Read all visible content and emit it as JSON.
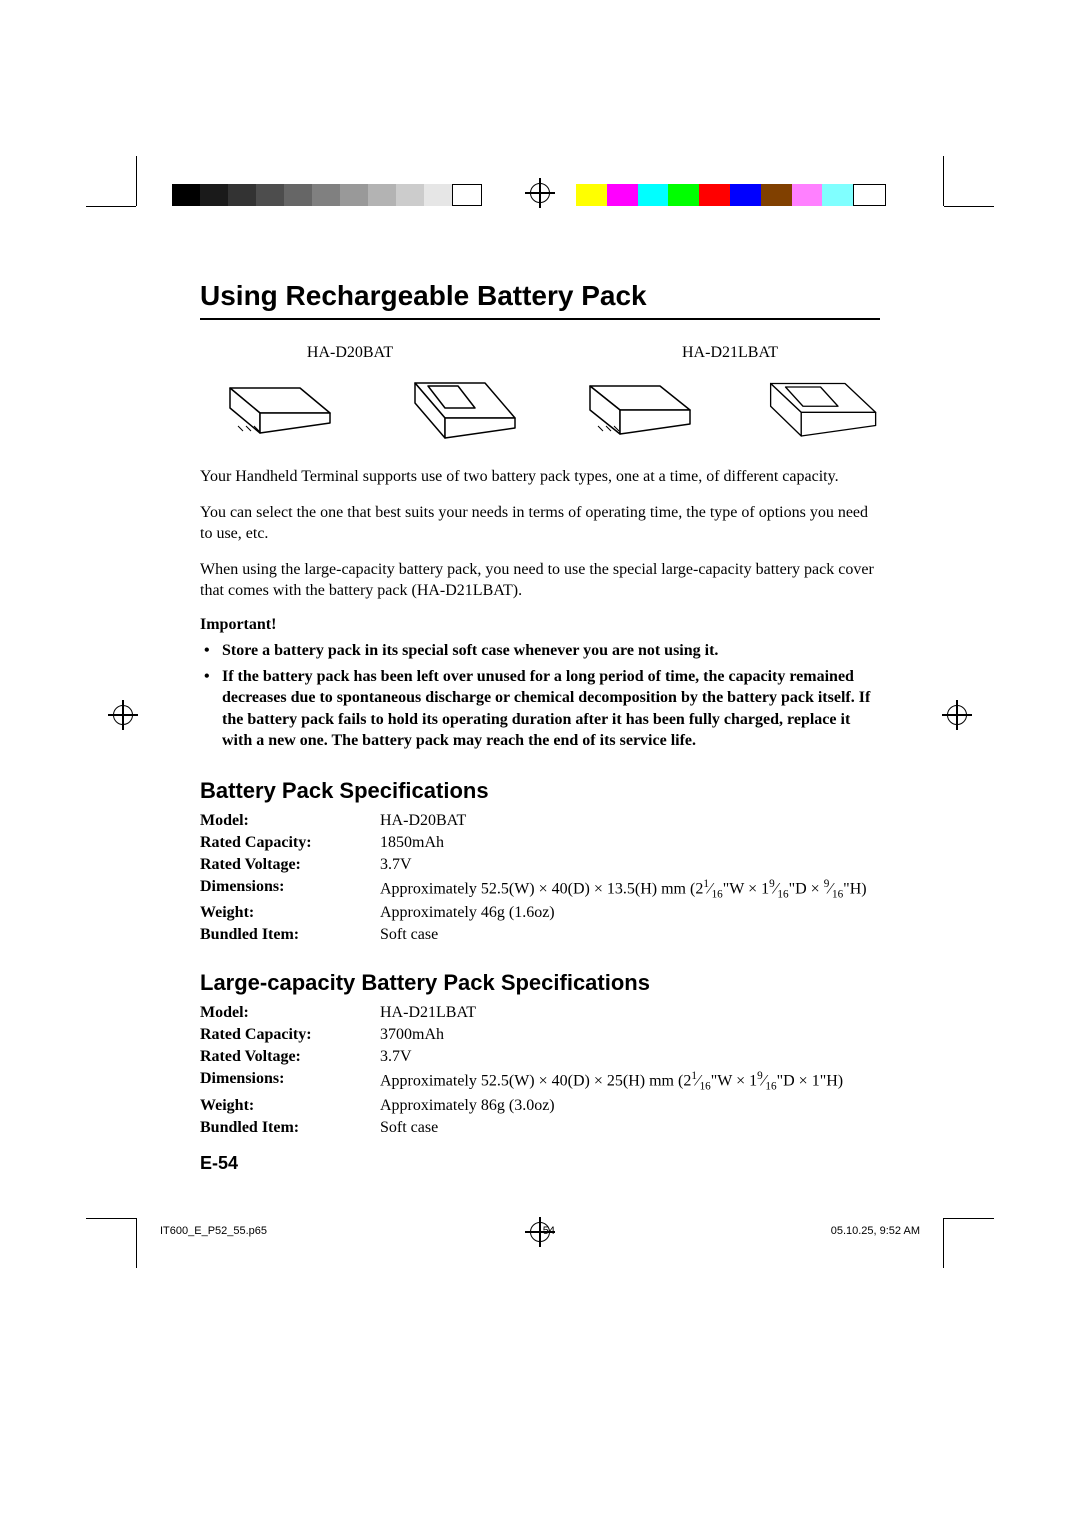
{
  "printMarks": {
    "grayBar": [
      "#000000",
      "#1a1a1a",
      "#333333",
      "#4d4d4d",
      "#666666",
      "#808080",
      "#999999",
      "#b3b3b3",
      "#cccccc",
      "#e6e6e6",
      "#ffffff"
    ],
    "colorBar": [
      "#ffff00",
      "#ff00ff",
      "#00ffff",
      "#00ff00",
      "#ff0000",
      "#0000ff",
      "#804000",
      "#ff80ff",
      "#80ffff",
      "#ffffff"
    ]
  },
  "title": "Using Rechargeable Battery Pack",
  "modelLabels": {
    "left": "HA-D20BAT",
    "right": "HA-D21LBAT"
  },
  "bodyParagraphs": [
    "Your Handheld Terminal supports use of two battery pack types, one at a time, of different capacity.",
    "You can select the one that best suits your needs in terms of operating time, the type of options you need to use, etc.",
    "When using the large-capacity battery pack, you need to use the special large-capacity battery pack cover that comes with the battery pack (HA-D21LBAT)."
  ],
  "importantLabel": "Important!",
  "bullets": [
    "Store a battery pack in its special soft case whenever you are not using it.",
    "If the battery pack has been left over unused for a long period of time, the capacity remained decreases due to spontaneous discharge or chemical decomposition by the battery pack itself. If the battery pack fails to hold its operating duration after it has been fully charged, replace it with a new one. The battery pack may reach the end of its service life."
  ],
  "spec1": {
    "heading": "Battery Pack Specifications",
    "rows": [
      {
        "label": "Model:",
        "value": "HA-D20BAT"
      },
      {
        "label": "Rated Capacity:",
        "value": "1850mAh"
      },
      {
        "label": "Rated Voltage:",
        "value": "3.7V"
      },
      {
        "label": "Dimensions:",
        "value_html": "Approximately 52.5(W) × 40(D) × 13.5(H) mm (2<span class='sup'>1</span>⁄<span class='sub'>16</span>\"W × 1<span class='sup'>9</span>⁄<span class='sub'>16</span>\"D × <span class='sup'>9</span>⁄<span class='sub'>16</span>\"H)"
      },
      {
        "label": "Weight:",
        "value": "Approximately 46g (1.6oz)"
      },
      {
        "label": "Bundled Item:",
        "value": "Soft case"
      }
    ]
  },
  "spec2": {
    "heading": "Large-capacity Battery Pack Specifications",
    "rows": [
      {
        "label": "Model:",
        "value": "HA-D21LBAT"
      },
      {
        "label": "Rated Capacity:",
        "value": "3700mAh"
      },
      {
        "label": "Rated Voltage:",
        "value": "3.7V"
      },
      {
        "label": "Dimensions:",
        "value_html": "Approximately 52.5(W) × 40(D) × 25(H) mm (2<span class='sup'>1</span>⁄<span class='sub'>16</span>\"W × 1<span class='sup'>9</span>⁄<span class='sub'>16</span>\"D × 1\"H)"
      },
      {
        "label": "Weight:",
        "value": "Approximately 86g (3.0oz)"
      },
      {
        "label": "Bundled Item:",
        "value": "Soft case"
      }
    ]
  },
  "pageNumber": "E-54",
  "footer": {
    "file": "IT600_E_P52_55.p65",
    "page": "54",
    "datetime": "05.10.25, 9:52 AM"
  }
}
